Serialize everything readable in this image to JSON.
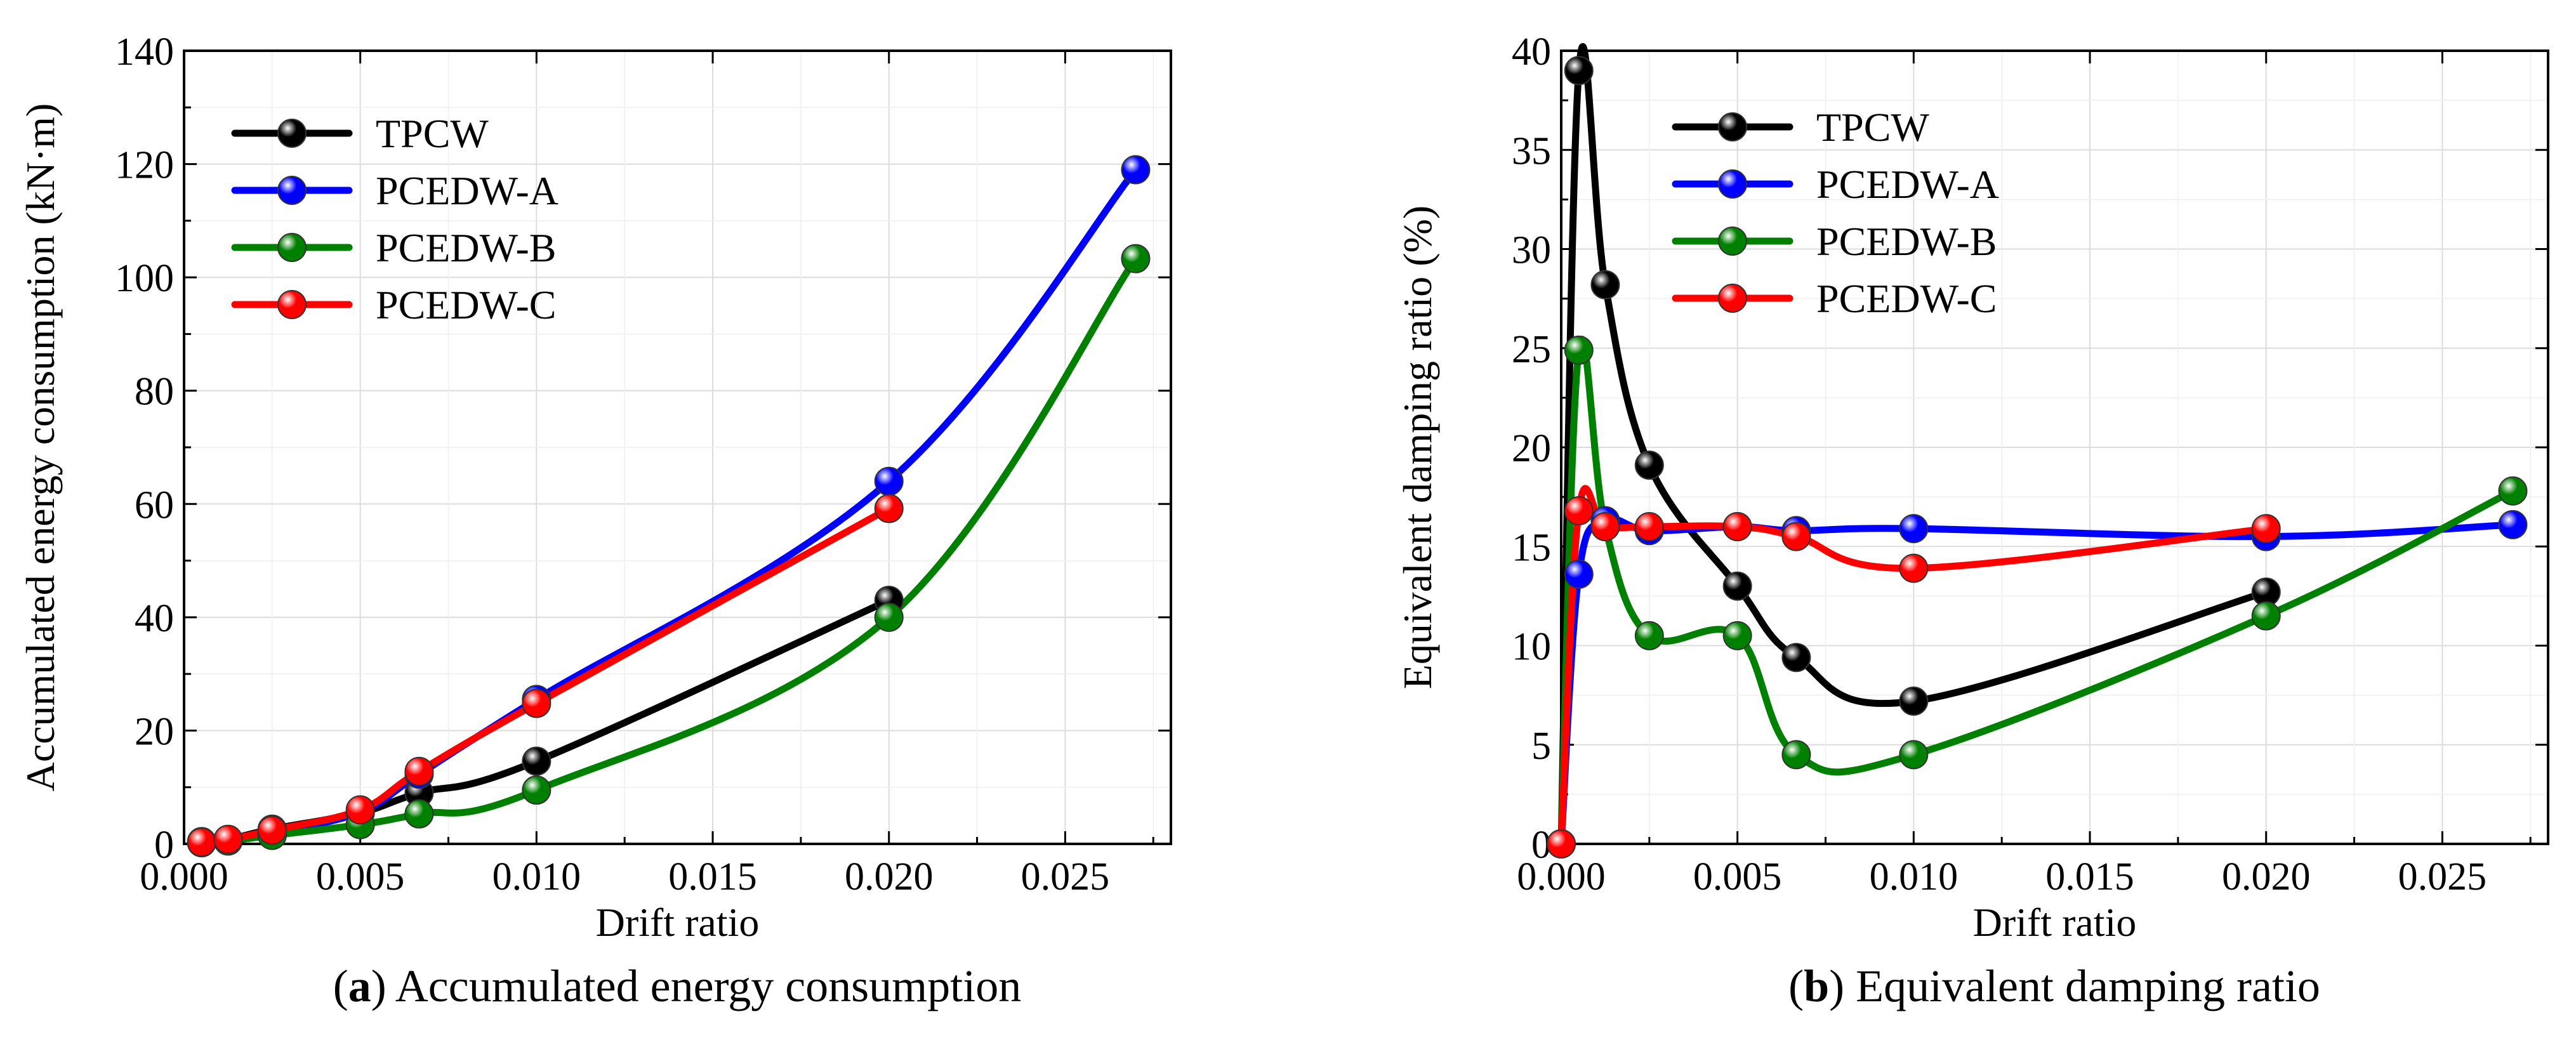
{
  "chart_data": [
    {
      "id": "a",
      "type": "line",
      "caption_letter": "a",
      "caption_text": " Accumulated energy consumption",
      "xlabel": "Drift ratio",
      "ylabel": "Accumulated energy consumption (kN·m)",
      "xlim": [
        0,
        0.028
      ],
      "ylim": [
        0,
        140
      ],
      "xticks": [
        0,
        0.005,
        0.01,
        0.015,
        0.02,
        0.025
      ],
      "xtick_labels": [
        "0.000",
        "0.005",
        "0.010",
        "0.015",
        "0.020",
        "0.025"
      ],
      "yticks": [
        0,
        20,
        40,
        60,
        80,
        100,
        120,
        140
      ],
      "ytick_labels": [
        "0",
        "20",
        "40",
        "60",
        "80",
        "100",
        "120",
        "140"
      ],
      "grid": true,
      "legend_position": "top-left",
      "series": [
        {
          "name": "TPCW",
          "color": "#000000",
          "x": [
            0.0005,
            0.00125,
            0.0025,
            0.005,
            0.00667,
            0.01,
            0.02
          ],
          "y": [
            0.4,
            0.8,
            2.6,
            5.5,
            9.0,
            14.6,
            43.0
          ]
        },
        {
          "name": "PCEDW-A",
          "color": "#0000ff",
          "x": [
            0.0005,
            0.00125,
            0.0025,
            0.005,
            0.00667,
            0.01,
            0.02,
            0.027
          ],
          "y": [
            0.3,
            0.7,
            2.0,
            5.6,
            12.3,
            25.5,
            64.0,
            119.0
          ]
        },
        {
          "name": "PCEDW-B",
          "color": "#008000",
          "x": [
            0.0005,
            0.00125,
            0.0025,
            0.005,
            0.00667,
            0.01,
            0.02,
            0.027
          ],
          "y": [
            0.2,
            0.5,
            1.5,
            3.4,
            5.3,
            9.5,
            40.0,
            103.3
          ]
        },
        {
          "name": "PCEDW-C",
          "color": "#ff0000",
          "x": [
            0.0005,
            0.00125,
            0.0025,
            0.005,
            0.00667,
            0.01,
            0.02
          ],
          "y": [
            0.3,
            0.8,
            2.4,
            6.0,
            12.8,
            24.8,
            59.2
          ]
        }
      ]
    },
    {
      "id": "b",
      "type": "line",
      "caption_letter": "b",
      "caption_text": " Equivalent damping ratio",
      "xlabel": "Drift ratio",
      "ylabel": "Equivalent damping ratio (%)",
      "xlim": [
        0,
        0.028
      ],
      "ylim": [
        0,
        40
      ],
      "xticks": [
        0,
        0.005,
        0.01,
        0.015,
        0.02,
        0.025
      ],
      "xtick_labels": [
        "0.000",
        "0.005",
        "0.010",
        "0.015",
        "0.020",
        "0.025"
      ],
      "yticks": [
        0,
        5,
        10,
        15,
        20,
        25,
        30,
        35,
        40
      ],
      "ytick_labels": [
        "0",
        "5",
        "10",
        "15",
        "20",
        "25",
        "30",
        "35",
        "40"
      ],
      "grid": true,
      "legend_position": "top-right",
      "series": [
        {
          "name": "TPCW",
          "color": "#000000",
          "x": [
            0,
            0.0005,
            0.00125,
            0.0025,
            0.005,
            0.00667,
            0.01,
            0.02
          ],
          "y": [
            0,
            39.0,
            28.2,
            19.1,
            13.0,
            9.4,
            7.2,
            12.7
          ]
        },
        {
          "name": "PCEDW-A",
          "color": "#0000ff",
          "x": [
            0,
            0.0005,
            0.00125,
            0.0025,
            0.005,
            0.00667,
            0.01,
            0.02,
            0.027
          ],
          "y": [
            0,
            13.6,
            16.3,
            15.8,
            16.0,
            15.8,
            15.9,
            15.5,
            16.1
          ]
        },
        {
          "name": "PCEDW-B",
          "color": "#008000",
          "x": [
            0,
            0.0005,
            0.00125,
            0.0025,
            0.005,
            0.00667,
            0.01,
            0.02,
            0.027
          ],
          "y": [
            0,
            24.9,
            16.0,
            10.5,
            10.5,
            4.5,
            4.5,
            11.5,
            17.8
          ]
        },
        {
          "name": "PCEDW-C",
          "color": "#ff0000",
          "x": [
            0,
            0.0005,
            0.00125,
            0.0025,
            0.005,
            0.00667,
            0.01,
            0.02
          ],
          "y": [
            0,
            16.8,
            16.0,
            16.0,
            16.0,
            15.5,
            13.9,
            15.9
          ]
        }
      ]
    }
  ]
}
